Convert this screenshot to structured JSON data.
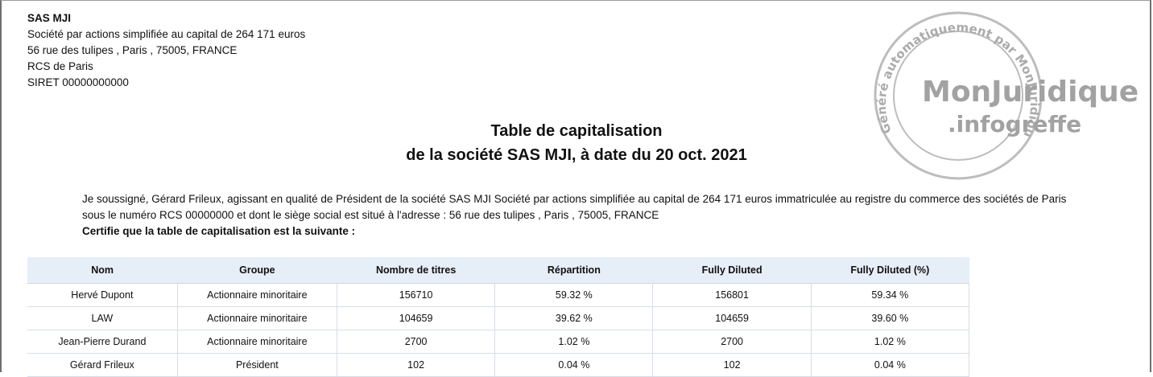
{
  "company": {
    "name": "SAS MJI",
    "description": "Société par actions simplifiée au capital de 264 171 euros",
    "address": "56 rue des tulipes , Paris , 75005, FRANCE",
    "rcs": "RCS de Paris",
    "siret": "SIRET 00000000000"
  },
  "stamp": {
    "brand_line1": "MonJuridique",
    "brand_line2": ".infogreffe",
    "ring_top": "Généré automatiquement par MonJuridique.infogreffe",
    "colors": {
      "stroke": "#b8b8b8",
      "text": "#a8a8a8"
    }
  },
  "title": {
    "line1": "Table de capitalisation",
    "line2": "de la société SAS MJI, à date du 20 oct. 2021"
  },
  "statement": {
    "text": "Je soussigné, Gérard Frileux, agissant en qualité de Président de la société SAS MJI Société par actions simplifiée au capital de 264 171 euros immatriculée au registre du commerce des sociétés de Paris sous le numéro RCS 00000000 et dont le siège social est situé à l'adresse : 56 rue des tulipes , Paris , 75005, FRANCE",
    "certify": "Certifie que la table de capitalisation est la suivante :"
  },
  "table": {
    "headers": [
      "Nom",
      "Groupe",
      "Nombre de titres",
      "Répartition",
      "Fully Diluted",
      "Fully Diluted (%)"
    ],
    "rows": [
      [
        "Hervé  Dupont",
        "Actionnaire minoritaire",
        "156710",
        "59.32 %",
        "156801",
        "59.34 %"
      ],
      [
        "LAW",
        "Actionnaire minoritaire",
        "104659",
        "39.62 %",
        "104659",
        "39.60 %"
      ],
      [
        "Jean-Pierre Durand",
        "Actionnaire minoritaire",
        "2700",
        "1.02 %",
        "2700",
        "1.02 %"
      ],
      [
        "Gérard Frileux",
        "Président",
        "102",
        "0.04 %",
        "102",
        "0.04 %"
      ]
    ],
    "colors": {
      "header_bg": "#e6eef8",
      "border": "#d7dde6"
    }
  }
}
